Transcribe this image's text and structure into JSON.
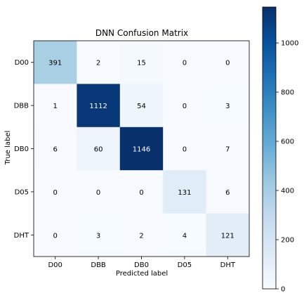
{
  "chart_data": {
    "type": "heatmap",
    "title": "DNN Confusion Matrix",
    "xlabel": "Predicted label",
    "ylabel": "True label",
    "x_categories": [
      "D00",
      "DBB",
      "DB0",
      "D05",
      "DHT"
    ],
    "y_categories": [
      "D00",
      "DBB",
      "DB0",
      "D05",
      "DHT"
    ],
    "matrix": [
      [
        391,
        2,
        15,
        0,
        0
      ],
      [
        1,
        1112,
        54,
        0,
        3
      ],
      [
        6,
        60,
        1146,
        0,
        7
      ],
      [
        0,
        0,
        0,
        131,
        6
      ],
      [
        0,
        3,
        2,
        4,
        121
      ]
    ],
    "color_range": [
      0,
      1146
    ],
    "colormap": "Blues",
    "colorbar_ticks": [
      0,
      200,
      400,
      600,
      800,
      1000
    ],
    "colorbar_tick_labels": [
      "0",
      "200",
      "400",
      "600",
      "800",
      "1000"
    ],
    "grid": false
  }
}
